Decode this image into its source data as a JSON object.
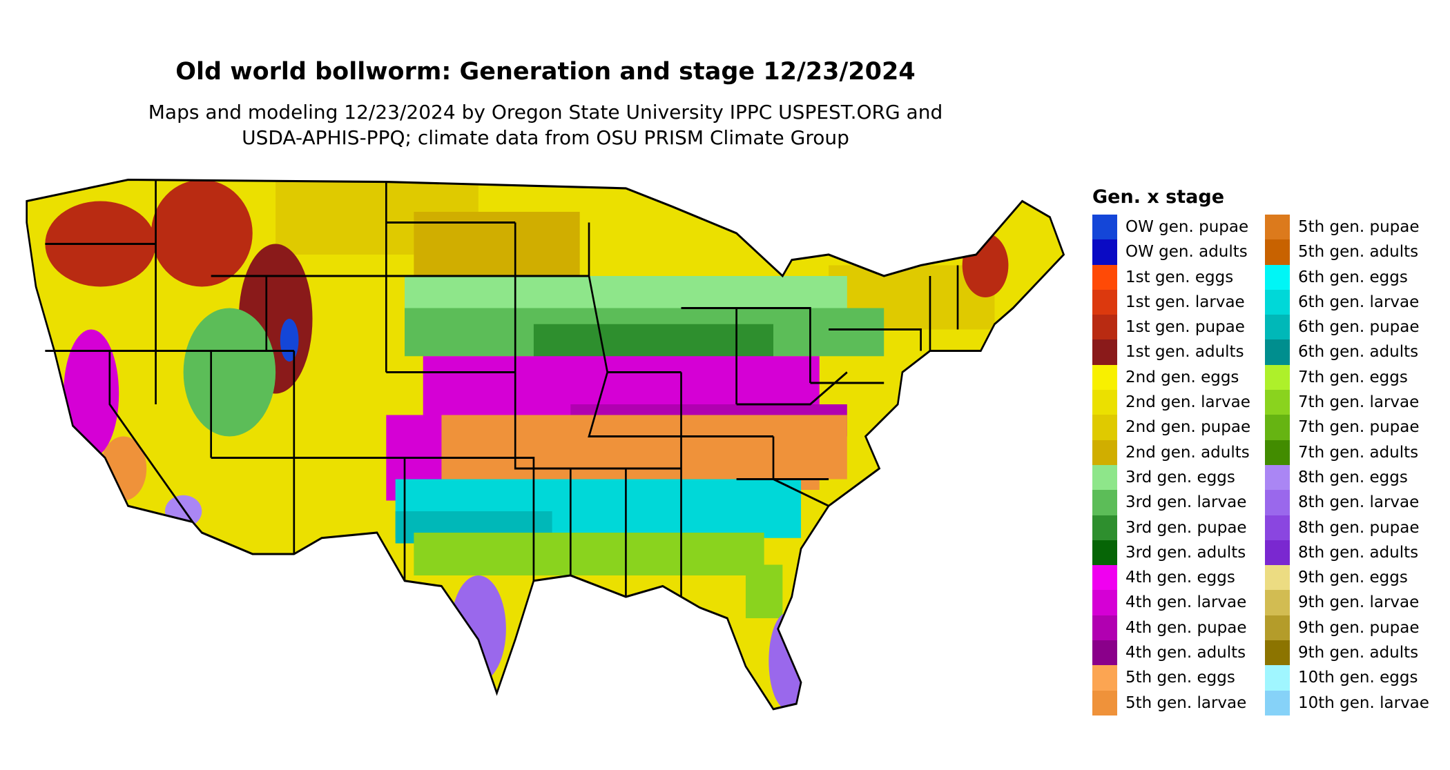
{
  "title": "Old world bollworm: Generation and stage 12/23/2024",
  "subtitle_line1": "Maps and modeling 12/23/2024 by Oregon State University IPPC USPEST.ORG and",
  "subtitle_line2": "USDA-APHIS-PPQ; climate data from OSU PRISM Climate Group",
  "legend": {
    "title": "Gen. x stage",
    "items": [
      {
        "label": "OW gen. pupae",
        "color": "#1446d8"
      },
      {
        "label": "OW gen. adults",
        "color": "#0a0ac4"
      },
      {
        "label": "1st gen. eggs",
        "color": "#ff4a06"
      },
      {
        "label": "1st gen. larvae",
        "color": "#dc390e"
      },
      {
        "label": "1st gen. pupae",
        "color": "#b92b12"
      },
      {
        "label": "1st gen. adults",
        "color": "#8a1a1a"
      },
      {
        "label": "2nd gen. eggs",
        "color": "#f8f000"
      },
      {
        "label": "2nd gen. larvae",
        "color": "#ebe000"
      },
      {
        "label": "2nd gen. pupae",
        "color": "#dfca00"
      },
      {
        "label": "2nd gen. adults",
        "color": "#d0ae00"
      },
      {
        "label": "3rd gen. eggs",
        "color": "#8ee68a"
      },
      {
        "label": "3rd gen. larvae",
        "color": "#5cbd58"
      },
      {
        "label": "3rd gen. pupae",
        "color": "#2e8f2e"
      },
      {
        "label": "3rd gen. adults",
        "color": "#066506"
      },
      {
        "label": "4th gen. eggs",
        "color": "#f000f0"
      },
      {
        "label": "4th gen. larvae",
        "color": "#d500d5"
      },
      {
        "label": "4th gen. pupae",
        "color": "#b100b1"
      },
      {
        "label": "4th gen. adults",
        "color": "#8a008a"
      },
      {
        "label": "5th gen. eggs",
        "color": "#fca552"
      },
      {
        "label": "5th gen. larvae",
        "color": "#ef923a"
      },
      {
        "label": "5th gen. pupae",
        "color": "#dc7a1c"
      },
      {
        "label": "5th gen. adults",
        "color": "#c86200"
      },
      {
        "label": "6th gen. eggs",
        "color": "#00f6f6"
      },
      {
        "label": "6th gen. larvae",
        "color": "#00d8d8"
      },
      {
        "label": "6th gen. pupae",
        "color": "#00b8b8"
      },
      {
        "label": "6th gen. adults",
        "color": "#008e8e"
      },
      {
        "label": "7th gen. eggs",
        "color": "#aef02a"
      },
      {
        "label": "7th gen. larvae",
        "color": "#8ad31e"
      },
      {
        "label": "7th gen. pupae",
        "color": "#66b412"
      },
      {
        "label": "7th gen. adults",
        "color": "#428c00"
      },
      {
        "label": "8th gen. eggs",
        "color": "#aa86f4"
      },
      {
        "label": "8th gen. larvae",
        "color": "#9a68ec"
      },
      {
        "label": "8th gen. pupae",
        "color": "#8a46e0"
      },
      {
        "label": "8th gen. adults",
        "color": "#7a28d0"
      },
      {
        "label": "9th gen. eggs",
        "color": "#ecdc82"
      },
      {
        "label": "9th gen. larvae",
        "color": "#d2bc52"
      },
      {
        "label": "9th gen. pupae",
        "color": "#b49c2a"
      },
      {
        "label": "9th gen. adults",
        "color": "#8c7400"
      },
      {
        "label": "10th gen. eggs",
        "color": "#a0f6ff"
      },
      {
        "label": "10th gen. larvae",
        "color": "#86d2f8"
      }
    ]
  }
}
